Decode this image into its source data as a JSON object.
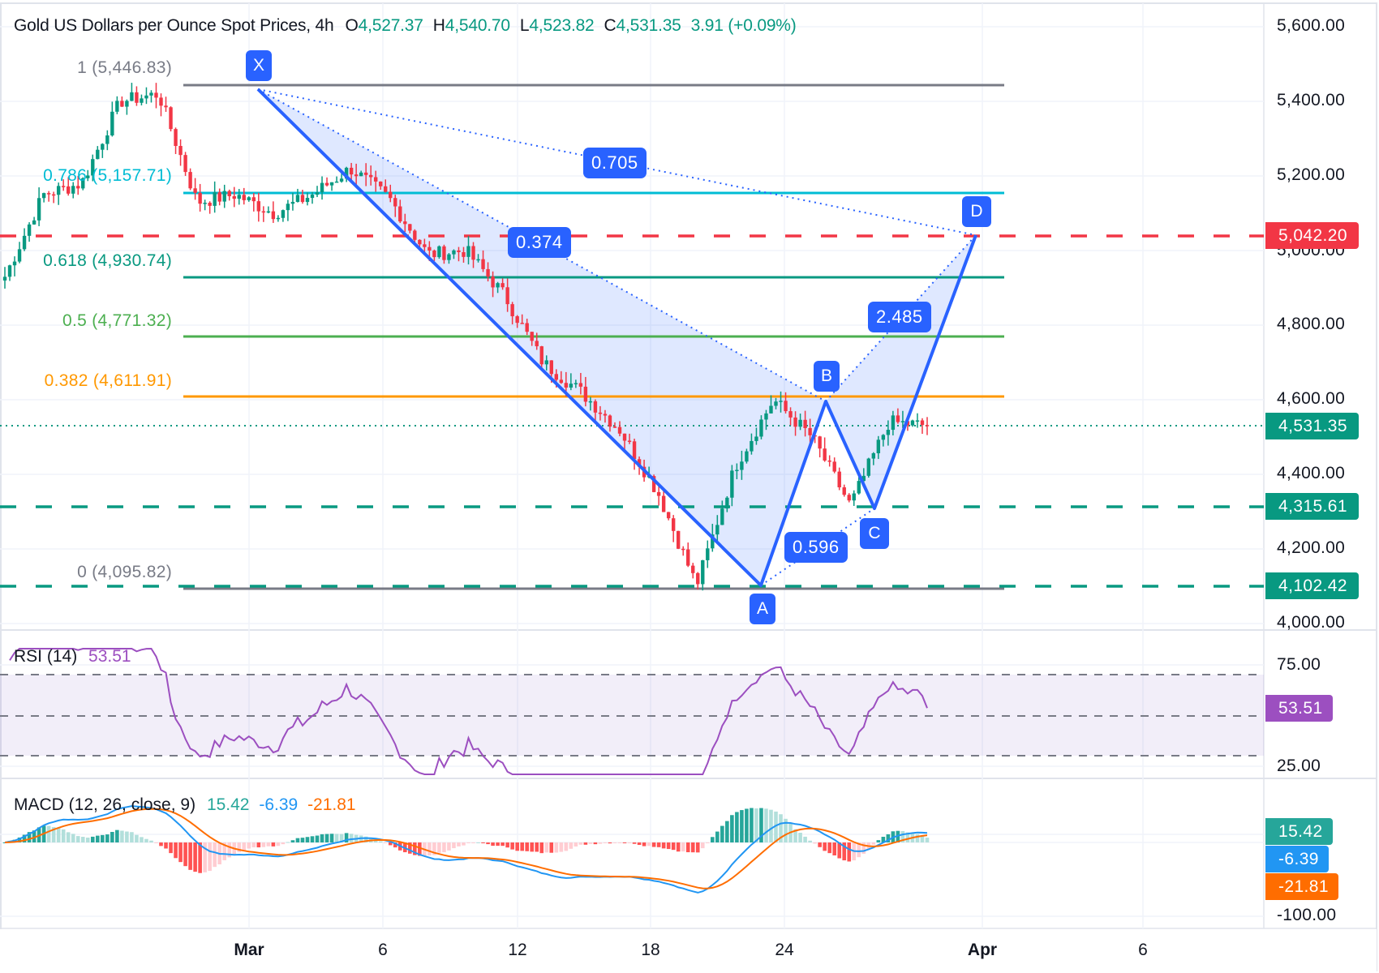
{
  "header": {
    "title": "Gold US Dollars per Ounce Spot Prices, 4h",
    "open_label": "O",
    "open": "4,527.37",
    "high_label": "H",
    "high": "4,540.70",
    "low_label": "L",
    "low": "4,523.82",
    "close_label": "C",
    "close": "4,531.35",
    "change": "3.91 (+0.09%)"
  },
  "price_axis": {
    "ticks": [
      "5,600.00",
      "5,400.00",
      "5,200.00",
      "5,000.00",
      "4,800.00",
      "4,600.00",
      "4,400.00",
      "4,200.00",
      "4,000.00"
    ],
    "tags": {
      "target": "5,042.20",
      "last": "4,531.35",
      "support1": "4,315.61",
      "support2": "4,102.42"
    }
  },
  "fibonacci": {
    "levels": [
      {
        "label": "1 (5,446.83)",
        "color": "#787b86"
      },
      {
        "label": "0.786 (5,157.71)",
        "color": "#00bcd4"
      },
      {
        "label": "0.618 (4,930.74)",
        "color": "#089981"
      },
      {
        "label": "0.5 (4,771.32)",
        "color": "#4caf50"
      },
      {
        "label": "0.382 (4,611.91)",
        "color": "#ff9800"
      },
      {
        "label": "0 (4,095.82)",
        "color": "#787b86"
      }
    ]
  },
  "pattern": {
    "points": {
      "x": "X",
      "a": "A",
      "b": "B",
      "c": "C",
      "d": "D"
    },
    "ratios": {
      "xb": "0.374",
      "xd": "0.705",
      "ac": "0.596",
      "bd": "2.485"
    },
    "color": "#2962ff"
  },
  "rsi": {
    "label": "RSI (14)",
    "value": "53.51",
    "ticks": [
      "75.00",
      "25.00"
    ],
    "tag": "53.51",
    "color": "#9c4fc0"
  },
  "macd": {
    "label": "MACD (12, 26, close, 9)",
    "histogram": "15.42",
    "macd": "-6.39",
    "signal": "-21.81",
    "ticks": [
      "-100.00"
    ],
    "tags": {
      "histogram": "15.42",
      "macd": "-6.39",
      "signal": "-21.81"
    },
    "colors": {
      "histogram": "#26a69a",
      "macd": "#2196f3",
      "signal": "#ff6d00"
    }
  },
  "time_axis": {
    "labels": [
      "Mar",
      "6",
      "12",
      "18",
      "24",
      "Apr",
      "6"
    ]
  },
  "colors": {
    "up": "#089981",
    "down": "#f23645",
    "target_line": "#f23645",
    "support_line": "#089981"
  },
  "chart_data": {
    "type": "candlestick",
    "title": "Gold US Dollars per Ounce Spot Prices, 4h",
    "timeframe": "4h",
    "ohlc_last": {
      "open": 4527.37,
      "high": 4540.7,
      "low": 4523.82,
      "close": 4531.35,
      "change": 3.91,
      "change_pct": 0.09
    },
    "x_ticks": [
      "Mar",
      "6",
      "12",
      "18",
      "24",
      "Apr",
      "6"
    ],
    "y_ticks": [
      5600,
      5400,
      5200,
      5000,
      4800,
      4600,
      4400,
      4200,
      4000
    ],
    "ylim": [
      3980,
      5680
    ],
    "approx_close_path": [
      {
        "date": "Feb 24",
        "price": 4930
      },
      {
        "date": "Feb 26",
        "price": 5150
      },
      {
        "date": "Feb 27",
        "price": 5180
      },
      {
        "date": "Mar 1",
        "price": 5400
      },
      {
        "date": "Mar 2",
        "price": 5420
      },
      {
        "date": "Mar 3",
        "price": 5130
      },
      {
        "date": "Mar 5",
        "price": 5150
      },
      {
        "date": "Mar 7",
        "price": 5100
      },
      {
        "date": "Mar 9",
        "price": 5150
      },
      {
        "date": "Mar 10",
        "price": 5220
      },
      {
        "date": "Mar 12",
        "price": 5140
      },
      {
        "date": "Mar 14",
        "price": 4990
      },
      {
        "date": "Mar 17",
        "price": 5000
      },
      {
        "date": "Mar 18",
        "price": 4880
      },
      {
        "date": "Mar 19",
        "price": 4700
      },
      {
        "date": "Mar 20",
        "price": 4620
      },
      {
        "date": "Mar 21",
        "price": 4520
      },
      {
        "date": "Mar 22",
        "price": 4350
      },
      {
        "date": "Mar 23",
        "price": 4102
      },
      {
        "date": "Mar 24",
        "price": 4420
      },
      {
        "date": "Mar 25",
        "price": 4600
      },
      {
        "date": "Mar 26",
        "price": 4500
      },
      {
        "date": "Mar 27",
        "price": 4316
      },
      {
        "date": "Mar 28",
        "price": 4540
      },
      {
        "date": "Mar 29",
        "price": 4531
      }
    ],
    "fibonacci_retracement": {
      "1": 5446.83,
      "0.786": 5157.71,
      "0.618": 4930.74,
      "0.5": 4771.32,
      "0.382": 4611.91,
      "0": 4095.82
    },
    "horizontal_levels": {
      "target": 5042.2,
      "support1": 4315.61,
      "support2": 4102.42,
      "last_price": 4531.35
    },
    "harmonic_pattern": {
      "X": 5446.83,
      "A": 4102.42,
      "B": 4611.91,
      "C": 4315.61,
      "D": 5042.2,
      "ratios": {
        "XB": 0.374,
        "XD": 0.705,
        "AC": 0.596,
        "BD": 2.485
      }
    },
    "rsi": {
      "period": 14,
      "last": 53.51,
      "bands": [
        70,
        50,
        30
      ],
      "ticks": [
        75,
        25
      ]
    },
    "macd": {
      "params": "12, 26, close, 9",
      "histogram": 15.42,
      "macd": -6.39,
      "signal": -21.81,
      "ticks": [
        -100
      ]
    }
  }
}
